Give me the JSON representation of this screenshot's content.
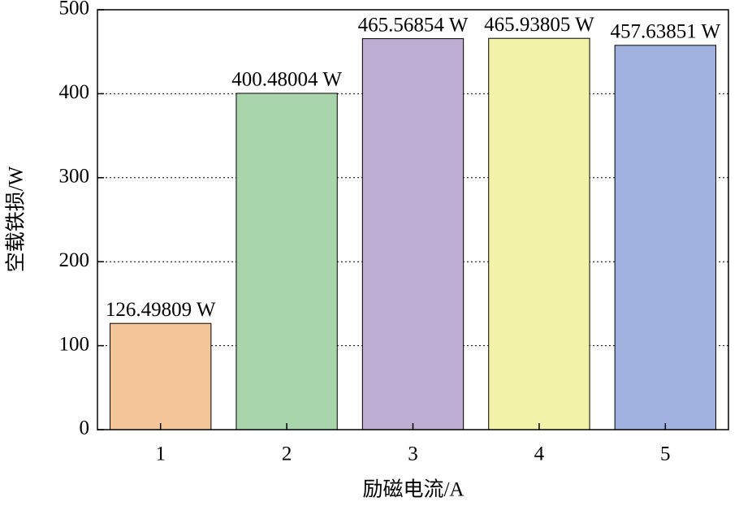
{
  "chart_data": {
    "type": "bar",
    "x_label": "励磁电流/A",
    "y_label": "空载铁损/W",
    "categories": [
      "1",
      "2",
      "3",
      "4",
      "5"
    ],
    "values": [
      126.49809,
      400.48004,
      465.56854,
      465.93805,
      457.63851
    ],
    "value_labels": [
      "126.49809 W",
      "400.48004 W",
      "465.56854 W",
      "465.93805 W",
      "457.63851 W"
    ],
    "colors": [
      "#f5c59a",
      "#a8d5ab",
      "#bfaed3",
      "#f2f2a8",
      "#a0b1e0"
    ],
    "ylim": [
      0,
      500
    ],
    "yticks": [
      0,
      100,
      200,
      300,
      400,
      500
    ],
    "grid": true
  }
}
